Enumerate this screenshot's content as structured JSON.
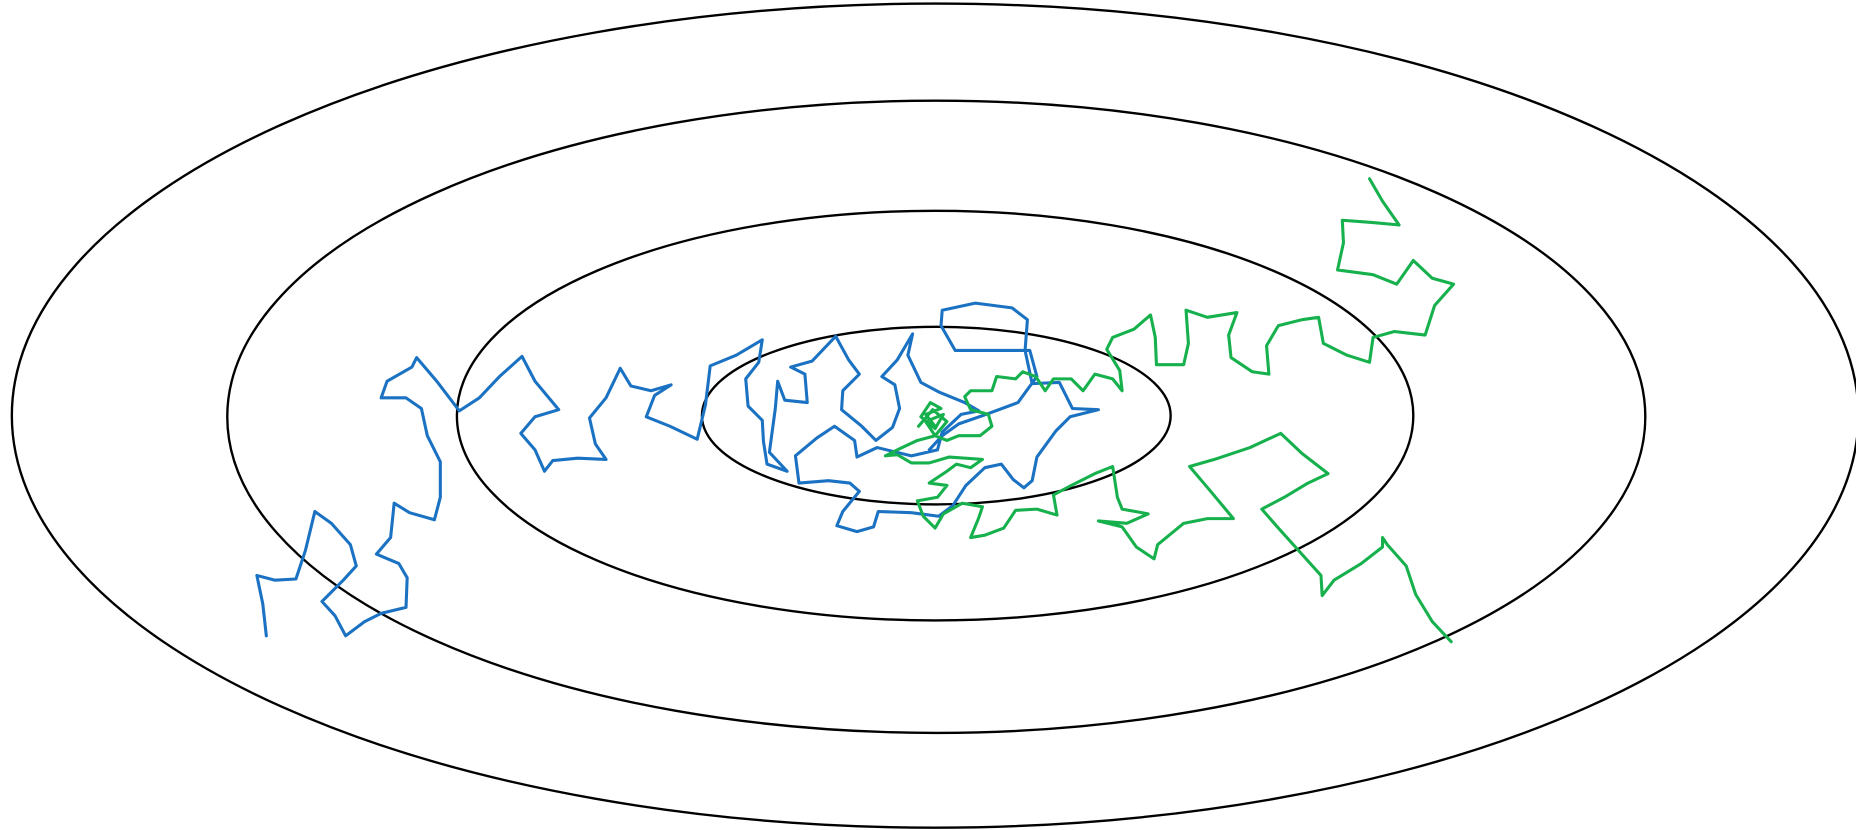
{
  "rings": {
    "color": "#000000"
  },
  "paths": [
    {
      "color": "#1b72c2"
    },
    {
      "color": "#16b14d"
    }
  ]
}
